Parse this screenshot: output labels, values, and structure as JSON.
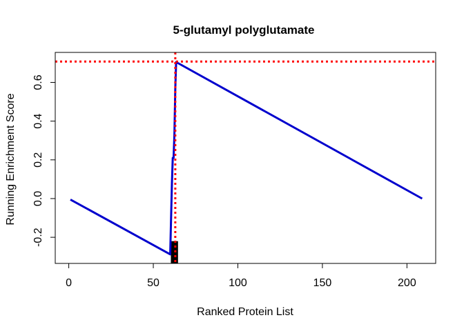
{
  "chart_data": {
    "type": "line",
    "title": "5-glutamyl polyglutamate",
    "xlabel": "Ranked Protein List",
    "ylabel": "Running Enrichment Score",
    "xlim": [
      -8,
      217
    ],
    "ylim": [
      -0.335,
      0.755
    ],
    "x_ticks": [
      0,
      50,
      100,
      150,
      200
    ],
    "x_tick_labels": [
      "0",
      "50",
      "100",
      "150",
      "200"
    ],
    "y_ticks": [
      -0.2,
      0.0,
      0.2,
      0.4,
      0.6
    ],
    "y_tick_labels": [
      "-0.2",
      "0.0",
      "0.2",
      "0.4",
      "0.6"
    ],
    "grid": false,
    "colors": {
      "curve": "#0000CD",
      "reference": "#FF0000",
      "hits": "#000000"
    },
    "series": [
      {
        "points": [
          [
            1,
            -0.005
          ],
          [
            60,
            -0.288
          ],
          [
            61,
            0.08
          ],
          [
            61.5,
            0.21
          ],
          [
            62,
            0.21
          ],
          [
            62.5,
            0.33
          ],
          [
            63,
            0.57
          ],
          [
            63.5,
            0.705
          ],
          [
            209,
            0.0
          ]
        ]
      }
    ],
    "max_enrichment_score": 0.708,
    "max_enrichment_position": 63,
    "hit_positions": [
      61,
      62,
      63,
      64
    ]
  }
}
